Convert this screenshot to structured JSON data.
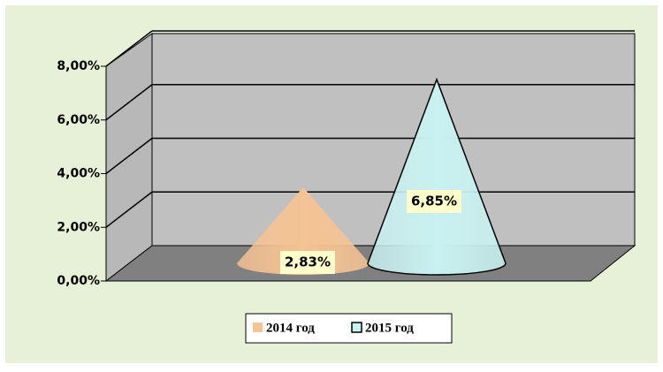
{
  "chart_data": {
    "type": "cone",
    "series": [
      {
        "name": "2014 год",
        "color": "#f5c394",
        "values": [
          2.83
        ],
        "value_labels": [
          "2,83%"
        ]
      },
      {
        "name": "2015 год",
        "color": "#c9f1f1",
        "values": [
          6.85
        ],
        "value_labels": [
          "6,85%"
        ]
      }
    ],
    "ylim": [
      0,
      8
    ],
    "yticks": [
      {
        "value": 0,
        "label": "0,00%"
      },
      {
        "value": 2,
        "label": "2,00%"
      },
      {
        "value": 4,
        "label": "4,00%"
      },
      {
        "value": 6,
        "label": "6,00%"
      },
      {
        "value": 8,
        "label": "8,00%"
      }
    ],
    "grid": true,
    "legend": "bottom"
  }
}
